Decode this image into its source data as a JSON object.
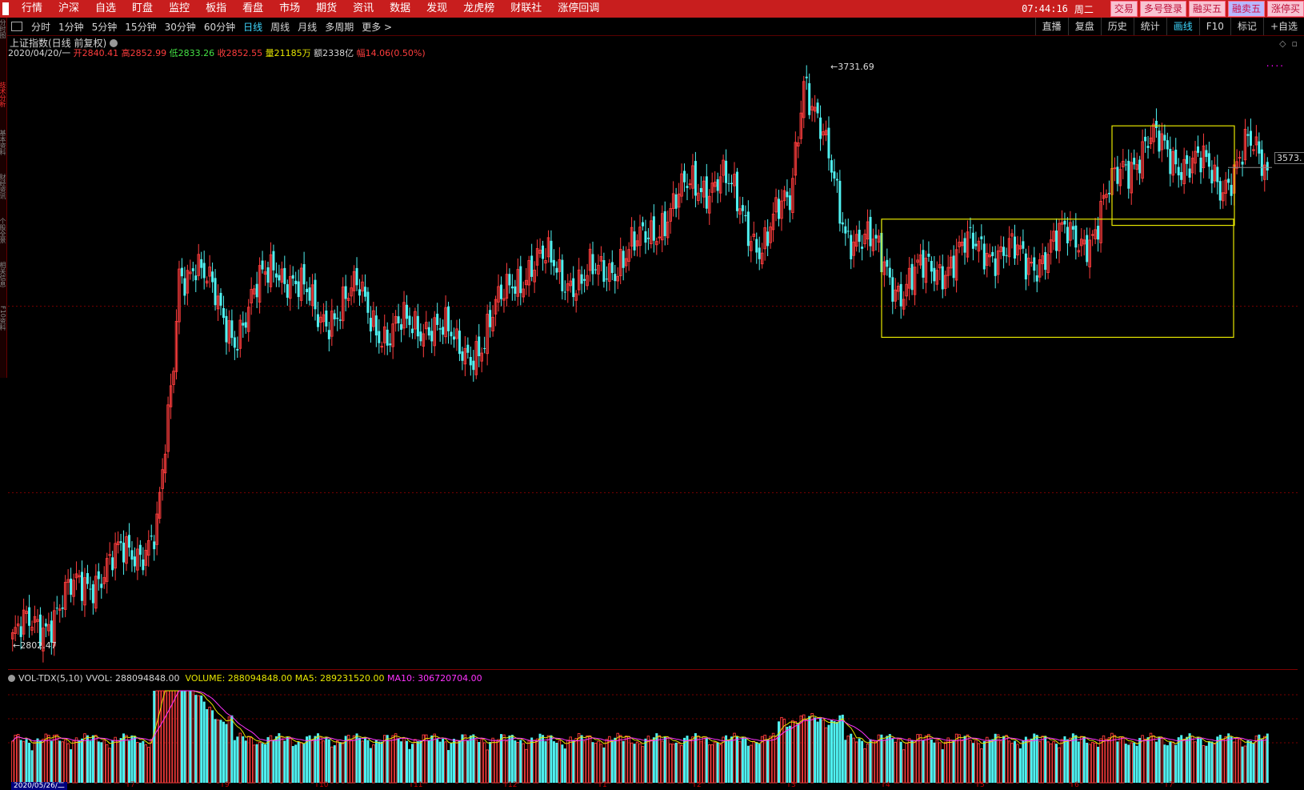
{
  "menubar": {
    "items": [
      "行情",
      "沪深",
      "自选",
      "盯盘",
      "监控",
      "板指",
      "看盘",
      "市场",
      "期货",
      "资讯",
      "数据",
      "发现",
      "龙虎榜",
      "财联社",
      "涨停回调"
    ],
    "clock": "07:44:16",
    "weekday": "周二",
    "buttons": [
      "交易",
      "多号登录",
      "融买五",
      "融卖五",
      "涨停买"
    ]
  },
  "toolbar": {
    "periods": [
      "分时",
      "1分钟",
      "5分钟",
      "15分钟",
      "30分钟",
      "60分钟",
      "日线",
      "周线",
      "月线",
      "多周期",
      "更多 >"
    ],
    "active_period": "日线",
    "right_buttons": [
      "直播",
      "复盘",
      "历史",
      "统计",
      "画线",
      "F10",
      "标记",
      "+自选"
    ],
    "active_tool": "画线"
  },
  "left_tabs": [
    "分时图",
    "技术分析",
    "基本资料",
    "财经资讯",
    "个股全景",
    "相关信息",
    "F10资料"
  ],
  "chart": {
    "title": "上证指数(日线 前复权)",
    "date": "2020/04/20/一",
    "open_label": "开",
    "open": "2840.41",
    "high_label": "高",
    "high": "2852.99",
    "low_label": "低",
    "low": "2833.26",
    "close_label": "收",
    "close": "2852.55",
    "volume_label": "量",
    "volume": "21185万",
    "amount_label": "额",
    "amount": "2338亿",
    "change_label": "幅",
    "change": "14.06(0.50%)",
    "max_price": "3731.69",
    "min_price": "2802.47",
    "last_price": "3573.",
    "colors": {
      "up": "#ff3d3d",
      "down": "#4ff1f1",
      "box": "#e6e600",
      "grid": "#7a0000",
      "ma5": "#e6e600",
      "ma10": "#ff33ff"
    }
  },
  "volume_panel": {
    "name": "VOL-TDX(5,10)",
    "vvol": "VVOL: 288094848.00",
    "volume": "VOLUME: 288094848.00",
    "ma5": "MA5: 289231520.00",
    "ma10": "MA10: 306720704.00",
    "first_date": "2020/05/26/二",
    "month_ticks": [
      "7",
      "9",
      "10",
      "11",
      "12",
      "1",
      "2",
      "3",
      "4",
      "5",
      "6",
      "7"
    ]
  }
}
